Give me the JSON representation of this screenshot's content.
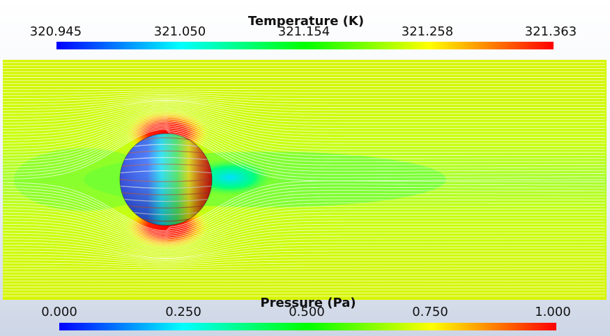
{
  "colorbars": {
    "temperature": {
      "title": "Temperature (K)",
      "ticks": [
        "320.945",
        "321.050",
        "321.154",
        "321.258",
        "321.363"
      ]
    },
    "pressure": {
      "title": "Pressure (Pa)",
      "ticks": [
        "0.000",
        "0.250",
        "0.500",
        "0.750",
        "1.000"
      ]
    }
  },
  "colormap": [
    "#0000ff",
    "#00ffff",
    "#00ff00",
    "#ffff00",
    "#ff0000"
  ],
  "background_gradient": [
    "#ffffff",
    "#cdd6e6"
  ],
  "streamline_color": "#ffffff"
}
